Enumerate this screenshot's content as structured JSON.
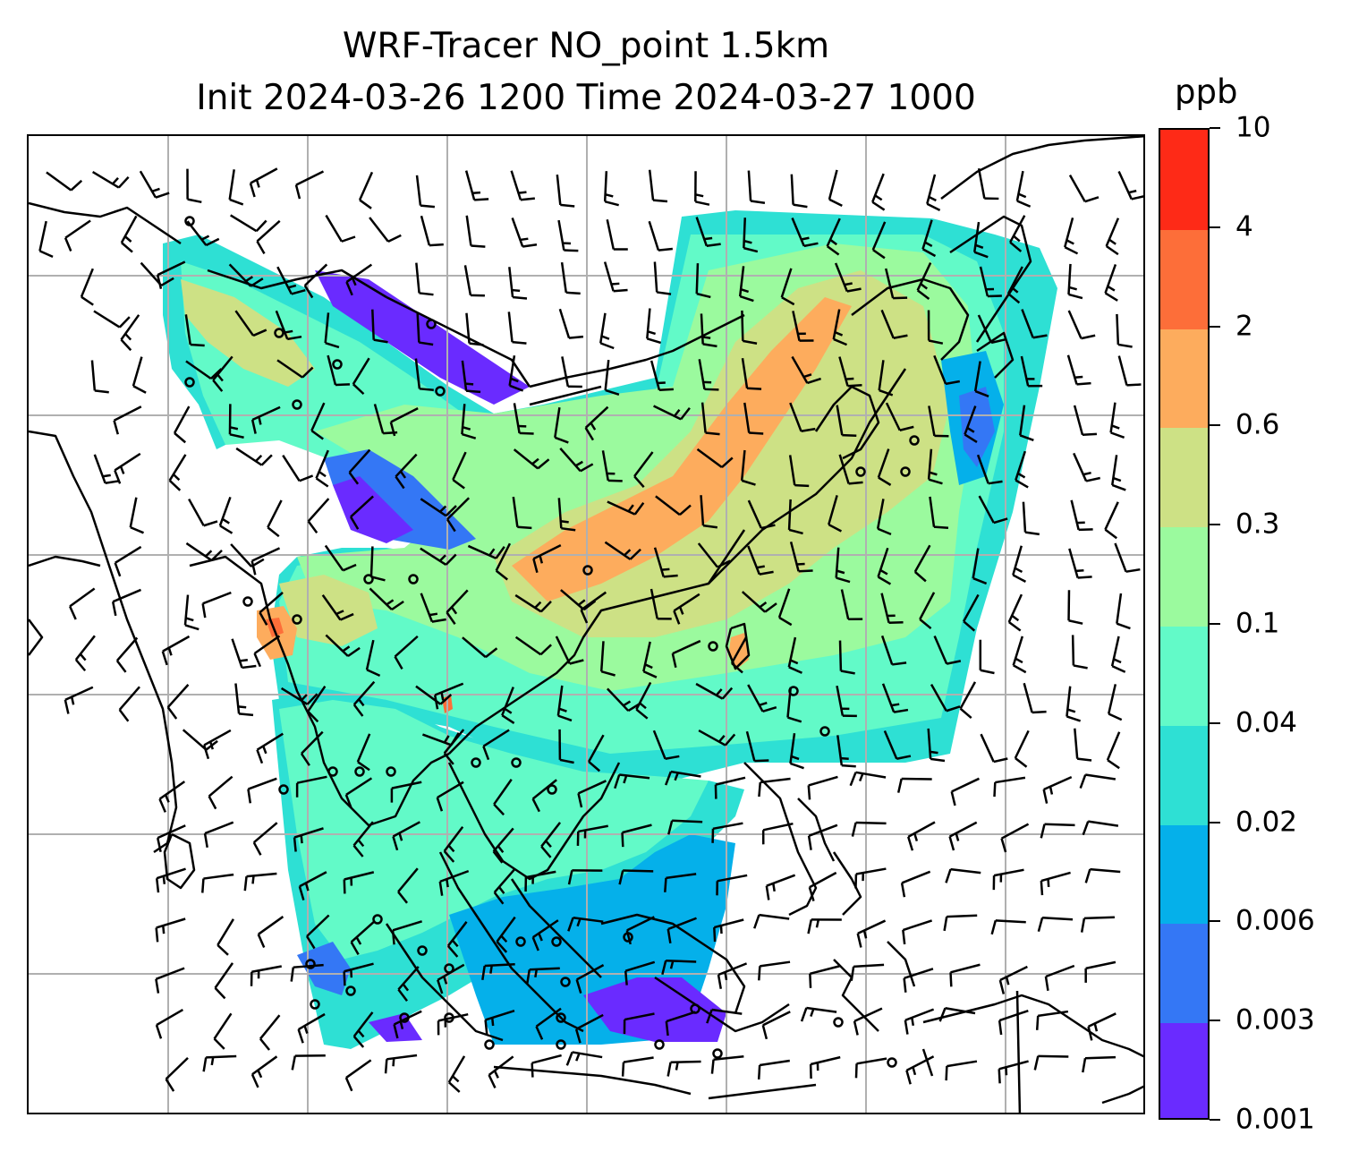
{
  "title": {
    "line1": "WRF-Tracer NO_point 1.5km",
    "line2": "Init 2024-03-26 1200 Time 2024-03-27 1000"
  },
  "colorbar": {
    "unit": "ppb",
    "ticks": [
      "0.001",
      "0.003",
      "0.006",
      "0.02",
      "0.04",
      "0.1",
      "0.3",
      "0.6",
      "2",
      "4",
      "10"
    ],
    "colors": [
      "#6a2bff",
      "#3477f5",
      "#05b0ea",
      "#2ee0d4",
      "#62fac8",
      "#9bfa9e",
      "#cde185",
      "#fdac5d",
      "#fd6e39",
      "#fe2a17"
    ]
  },
  "map": {
    "gridlines": true,
    "wind_barbs": true,
    "coastlines": true
  }
}
